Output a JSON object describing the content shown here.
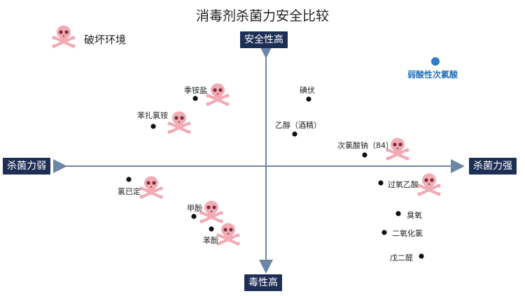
{
  "title": "消毒剂杀菌力安全比较",
  "axes": {
    "top": "安全性高",
    "bottom": "毒性高",
    "left": "杀菌力弱",
    "right": "杀菌力强"
  },
  "legend": {
    "icon": "skull-crossbones-icon",
    "label": "破坏环境",
    "icon_color": "#f2aab4"
  },
  "special_point": {
    "label": "弱酸性次氯酸",
    "color": "#2e7cc4"
  },
  "colors": {
    "axis_box": "#1e2f55",
    "axis_line": "#6b86a6",
    "point": "#111111"
  },
  "points": [
    {
      "label": "季铵盐",
      "skull": true
    },
    {
      "label": "苯扎氯铵",
      "skull": true
    },
    {
      "label": "碘伏",
      "skull": false
    },
    {
      "label": "乙醇（酒精）",
      "skull": false
    },
    {
      "label": "次氯酸钠（84）",
      "skull": true
    },
    {
      "label": "氯已定",
      "skull": true
    },
    {
      "label": "过氧乙酸",
      "skull": true
    },
    {
      "label": "臭氧",
      "skull": false
    },
    {
      "label": "甲酚",
      "skull": true
    },
    {
      "label": "苯酚",
      "skull": true
    },
    {
      "label": "二氧化氯",
      "skull": false
    },
    {
      "label": "戊二醛",
      "skull": false
    }
  ]
}
